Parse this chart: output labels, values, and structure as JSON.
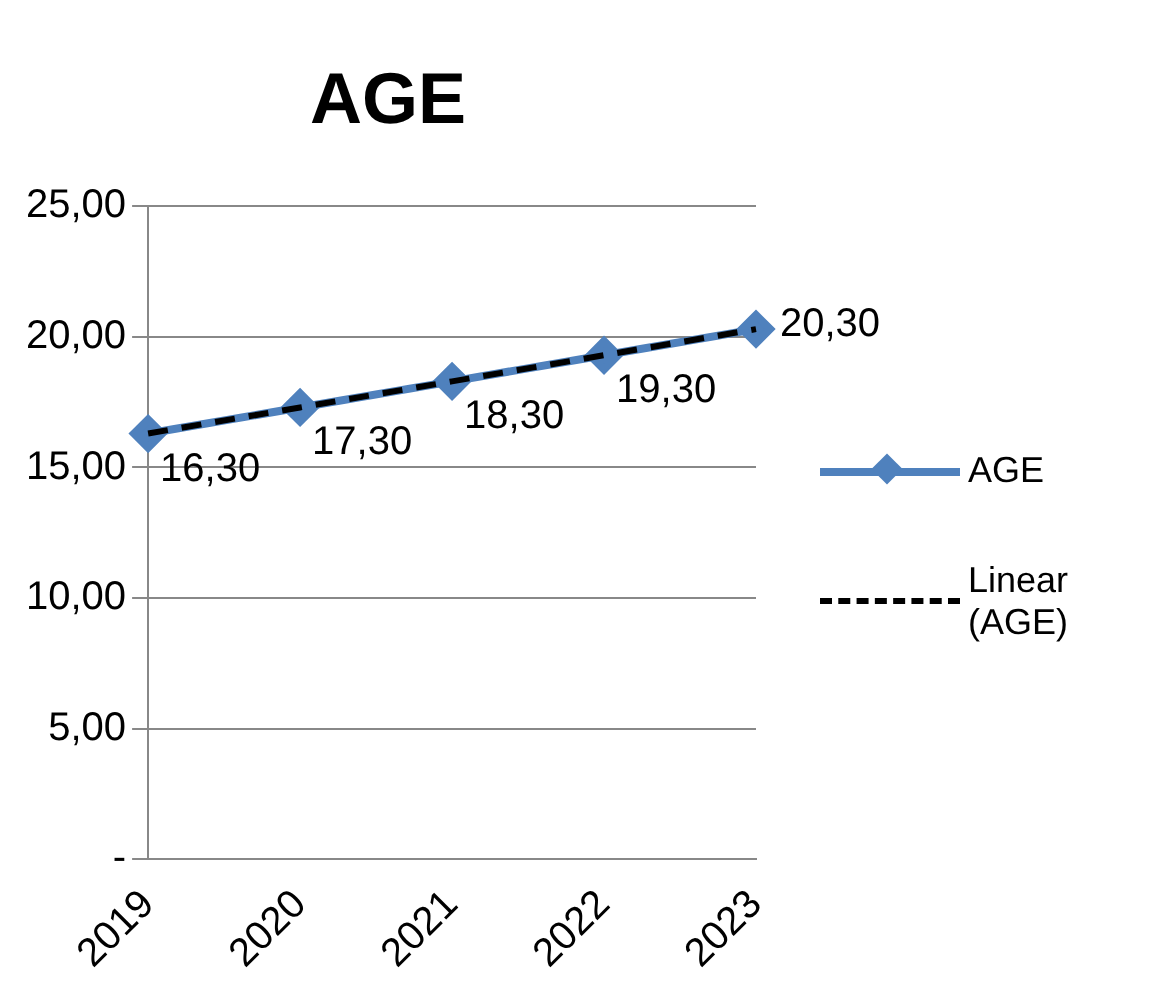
{
  "chart_data": {
    "type": "line",
    "title": "AGE",
    "categories": [
      "2019",
      "2020",
      "2021",
      "2022",
      "2023"
    ],
    "series": [
      {
        "name": "AGE",
        "color": "#4f81bd",
        "values": [
          16.3,
          17.3,
          18.3,
          19.3,
          20.3
        ],
        "marker": "diamond",
        "value_labels": [
          "16,30",
          "17,30",
          "18,30",
          "19,30",
          "20,30"
        ]
      },
      {
        "name": "Linear (AGE)",
        "type": "line",
        "color": "#000000",
        "values": [
          16.3,
          17.3,
          18.3,
          19.3,
          20.3
        ],
        "marker": "none",
        "line_style": "dashed"
      }
    ],
    "ylim": [
      0,
      25
    ],
    "yticks": [
      {
        "value": 0,
        "label": "-"
      },
      {
        "value": 5,
        "label": "5,00"
      },
      {
        "value": 10,
        "label": "10,00"
      },
      {
        "value": 15,
        "label": "15,00"
      },
      {
        "value": 20,
        "label": "20,00"
      },
      {
        "value": 25,
        "label": "25,00"
      }
    ],
    "grid": "y",
    "legend": "right"
  }
}
